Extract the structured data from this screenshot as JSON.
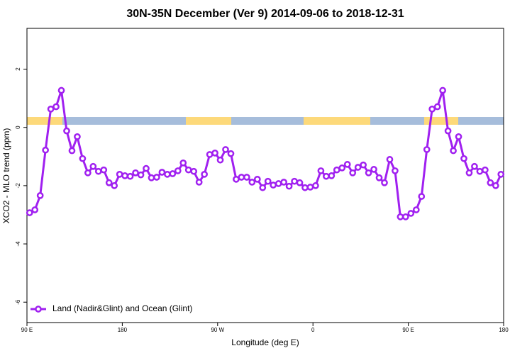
{
  "chart_data": {
    "type": "line",
    "title": "30N-35N December (Ver 9)   2014-09-06 to 2018-12-31",
    "x_label": "Longitude (deg E)",
    "y_label": "XCO2 - MLO trend (ppm)",
    "x": [
      92.5,
      97.5,
      102.5,
      107.5,
      112.5,
      117.5,
      122.5,
      127.5,
      132.5,
      137.5,
      142.5,
      147.5,
      152.5,
      157.5,
      162.5,
      167.5,
      172.5,
      177.5,
      182.5,
      187.5,
      192.5,
      197.5,
      202.5,
      207.5,
      212.5,
      217.5,
      222.5,
      227.5,
      232.5,
      237.5,
      242.5,
      247.5,
      252.5,
      257.5,
      262.5,
      267.5,
      272.5,
      277.5,
      282.5,
      287.5,
      292.5,
      297.5,
      302.5,
      307.5,
      312.5,
      317.5,
      322.5,
      327.5,
      332.5,
      337.5,
      342.5,
      347.5,
      352.5,
      357.5,
      362.5,
      367.5,
      372.5,
      377.5,
      382.5,
      387.5,
      392.5,
      397.5,
      402.5,
      407.5,
      412.5,
      417.5,
      422.5,
      427.5,
      432.5,
      437.5,
      442.5,
      447.5,
      452.5,
      457.5,
      462.5,
      467.5,
      472.5,
      477.5,
      482.5,
      487.5,
      492.5,
      497.5,
      502.5,
      507.5,
      512.5,
      517.5,
      522.5,
      527.5,
      532.5,
      537.5
    ],
    "series": [
      {
        "name": "Land (Nadir&Glint) and Ocean (Glint)",
        "color": "#a020f0",
        "values": [
          -2.93,
          -2.83,
          -2.34,
          -0.78,
          0.63,
          0.71,
          1.27,
          -0.12,
          -0.8,
          -0.32,
          -1.07,
          -1.56,
          -1.34,
          -1.51,
          -1.46,
          -1.9,
          -2.0,
          -1.61,
          -1.66,
          -1.68,
          -1.56,
          -1.63,
          -1.41,
          -1.73,
          -1.71,
          -1.54,
          -1.61,
          -1.59,
          -1.49,
          -1.22,
          -1.46,
          -1.51,
          -1.88,
          -1.61,
          -0.93,
          -0.88,
          -1.12,
          -0.76,
          -0.9,
          -1.78,
          -1.71,
          -1.71,
          -1.88,
          -1.78,
          -2.07,
          -1.85,
          -1.98,
          -1.93,
          -1.88,
          -2.02,
          -1.85,
          -1.9,
          -2.07,
          -2.05,
          -2.0,
          -1.49,
          -1.68,
          -1.66,
          -1.46,
          -1.39,
          -1.27,
          -1.56,
          -1.37,
          -1.29,
          -1.56,
          -1.44,
          -1.73,
          -1.9,
          -1.1,
          -1.49,
          -3.07,
          -3.07,
          -2.95,
          -2.83,
          -2.37,
          -0.76,
          0.63,
          0.71,
          1.27,
          -0.12,
          -0.8,
          -0.32,
          -1.07,
          -1.56,
          -1.34,
          -1.51,
          -1.46,
          -1.9,
          -2.0,
          -1.61
        ]
      }
    ],
    "xlim": [
      90,
      540
    ],
    "xticks": [
      {
        "value": 90,
        "label": "90 E"
      },
      {
        "value": 180,
        "label": "180"
      },
      {
        "value": 270,
        "label": "90 W"
      },
      {
        "value": 360,
        "label": "0"
      },
      {
        "value": 450,
        "label": "90 E"
      },
      {
        "value": 540,
        "label": "180"
      }
    ],
    "ylim": [
      -6.7,
      3.4
    ],
    "yticks": [
      -6,
      -4,
      -2,
      0,
      2
    ],
    "legend": "bottomleft"
  }
}
